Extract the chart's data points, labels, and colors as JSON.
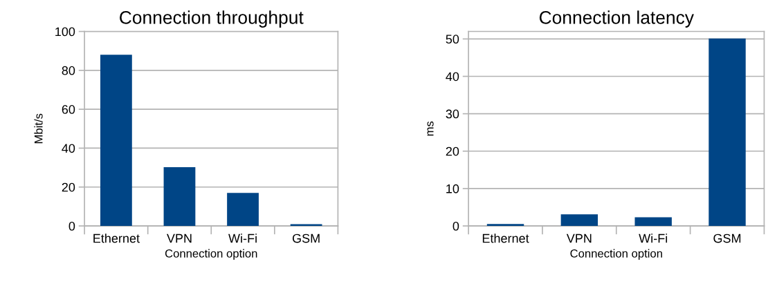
{
  "chart_data": [
    {
      "type": "bar",
      "title": "Connection throughput",
      "xlabel": "Connection option",
      "ylabel": "Mbit/s",
      "categories": [
        "Ethernet",
        "VPN",
        "Wi-Fi",
        "GSM"
      ],
      "values": [
        88,
        30.2,
        17,
        0.9
      ],
      "color": "#004586",
      "ylim": [
        0,
        100
      ],
      "yticks": [
        0,
        20,
        40,
        60,
        80,
        100
      ],
      "grid": "y"
    },
    {
      "type": "bar",
      "title": "Connection latency",
      "xlabel": "Connection option",
      "ylabel": "ms",
      "categories": [
        "Ethernet",
        "VPN",
        "Wi-Fi",
        "GSM"
      ],
      "values": [
        0.5,
        3.1,
        2.3,
        50.1
      ],
      "color": "#004586",
      "ylim": [
        0,
        52
      ],
      "yticks": [
        0,
        10,
        20,
        30,
        40,
        50
      ],
      "grid": "y"
    }
  ]
}
